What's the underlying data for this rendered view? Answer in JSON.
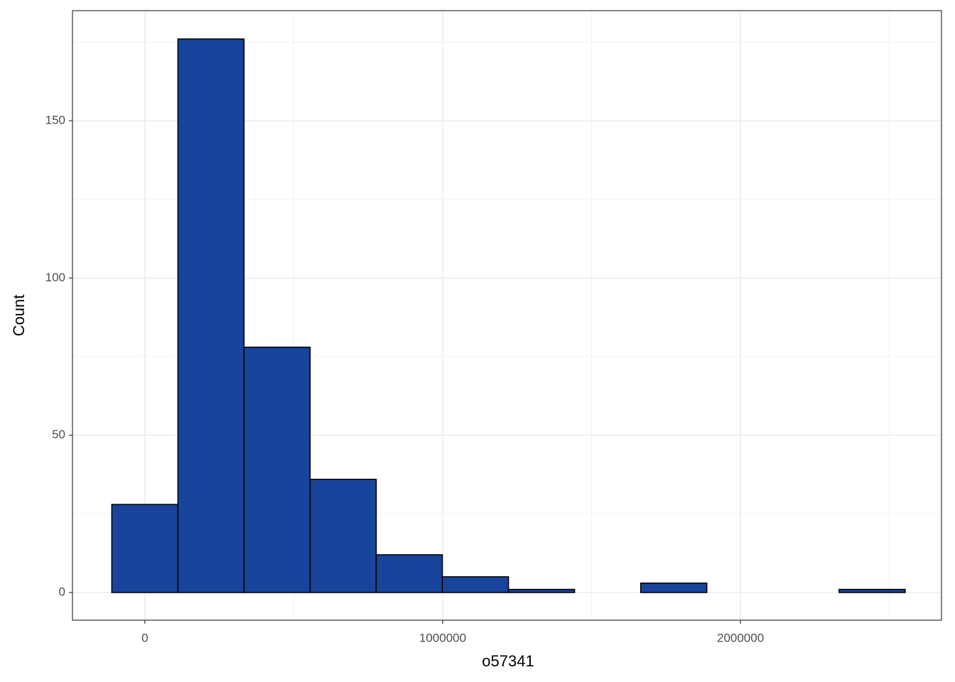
{
  "chart_data": {
    "type": "histogram",
    "x_label": "o57341",
    "y_label": "Count",
    "bins": [
      -111000,
      111000,
      333000,
      555000,
      777000,
      999000,
      1221000,
      1443000,
      1665000,
      1887000,
      2109000,
      2331000,
      2553000
    ],
    "values": [
      28,
      176,
      78,
      36,
      12,
      5,
      1,
      0,
      3,
      0,
      0,
      1
    ],
    "color": "#18449b",
    "edgecolor": "#000000",
    "xlim": [
      -243000,
      2675000
    ],
    "ylim": [
      -8.8,
      185
    ],
    "xticks": [
      0,
      1000000,
      2000000
    ],
    "yticks": [
      0,
      50,
      100,
      150
    ],
    "xminor": [
      500000,
      1500000,
      2500000
    ],
    "yminor": [
      25,
      75,
      125,
      175
    ],
    "grid": true
  }
}
